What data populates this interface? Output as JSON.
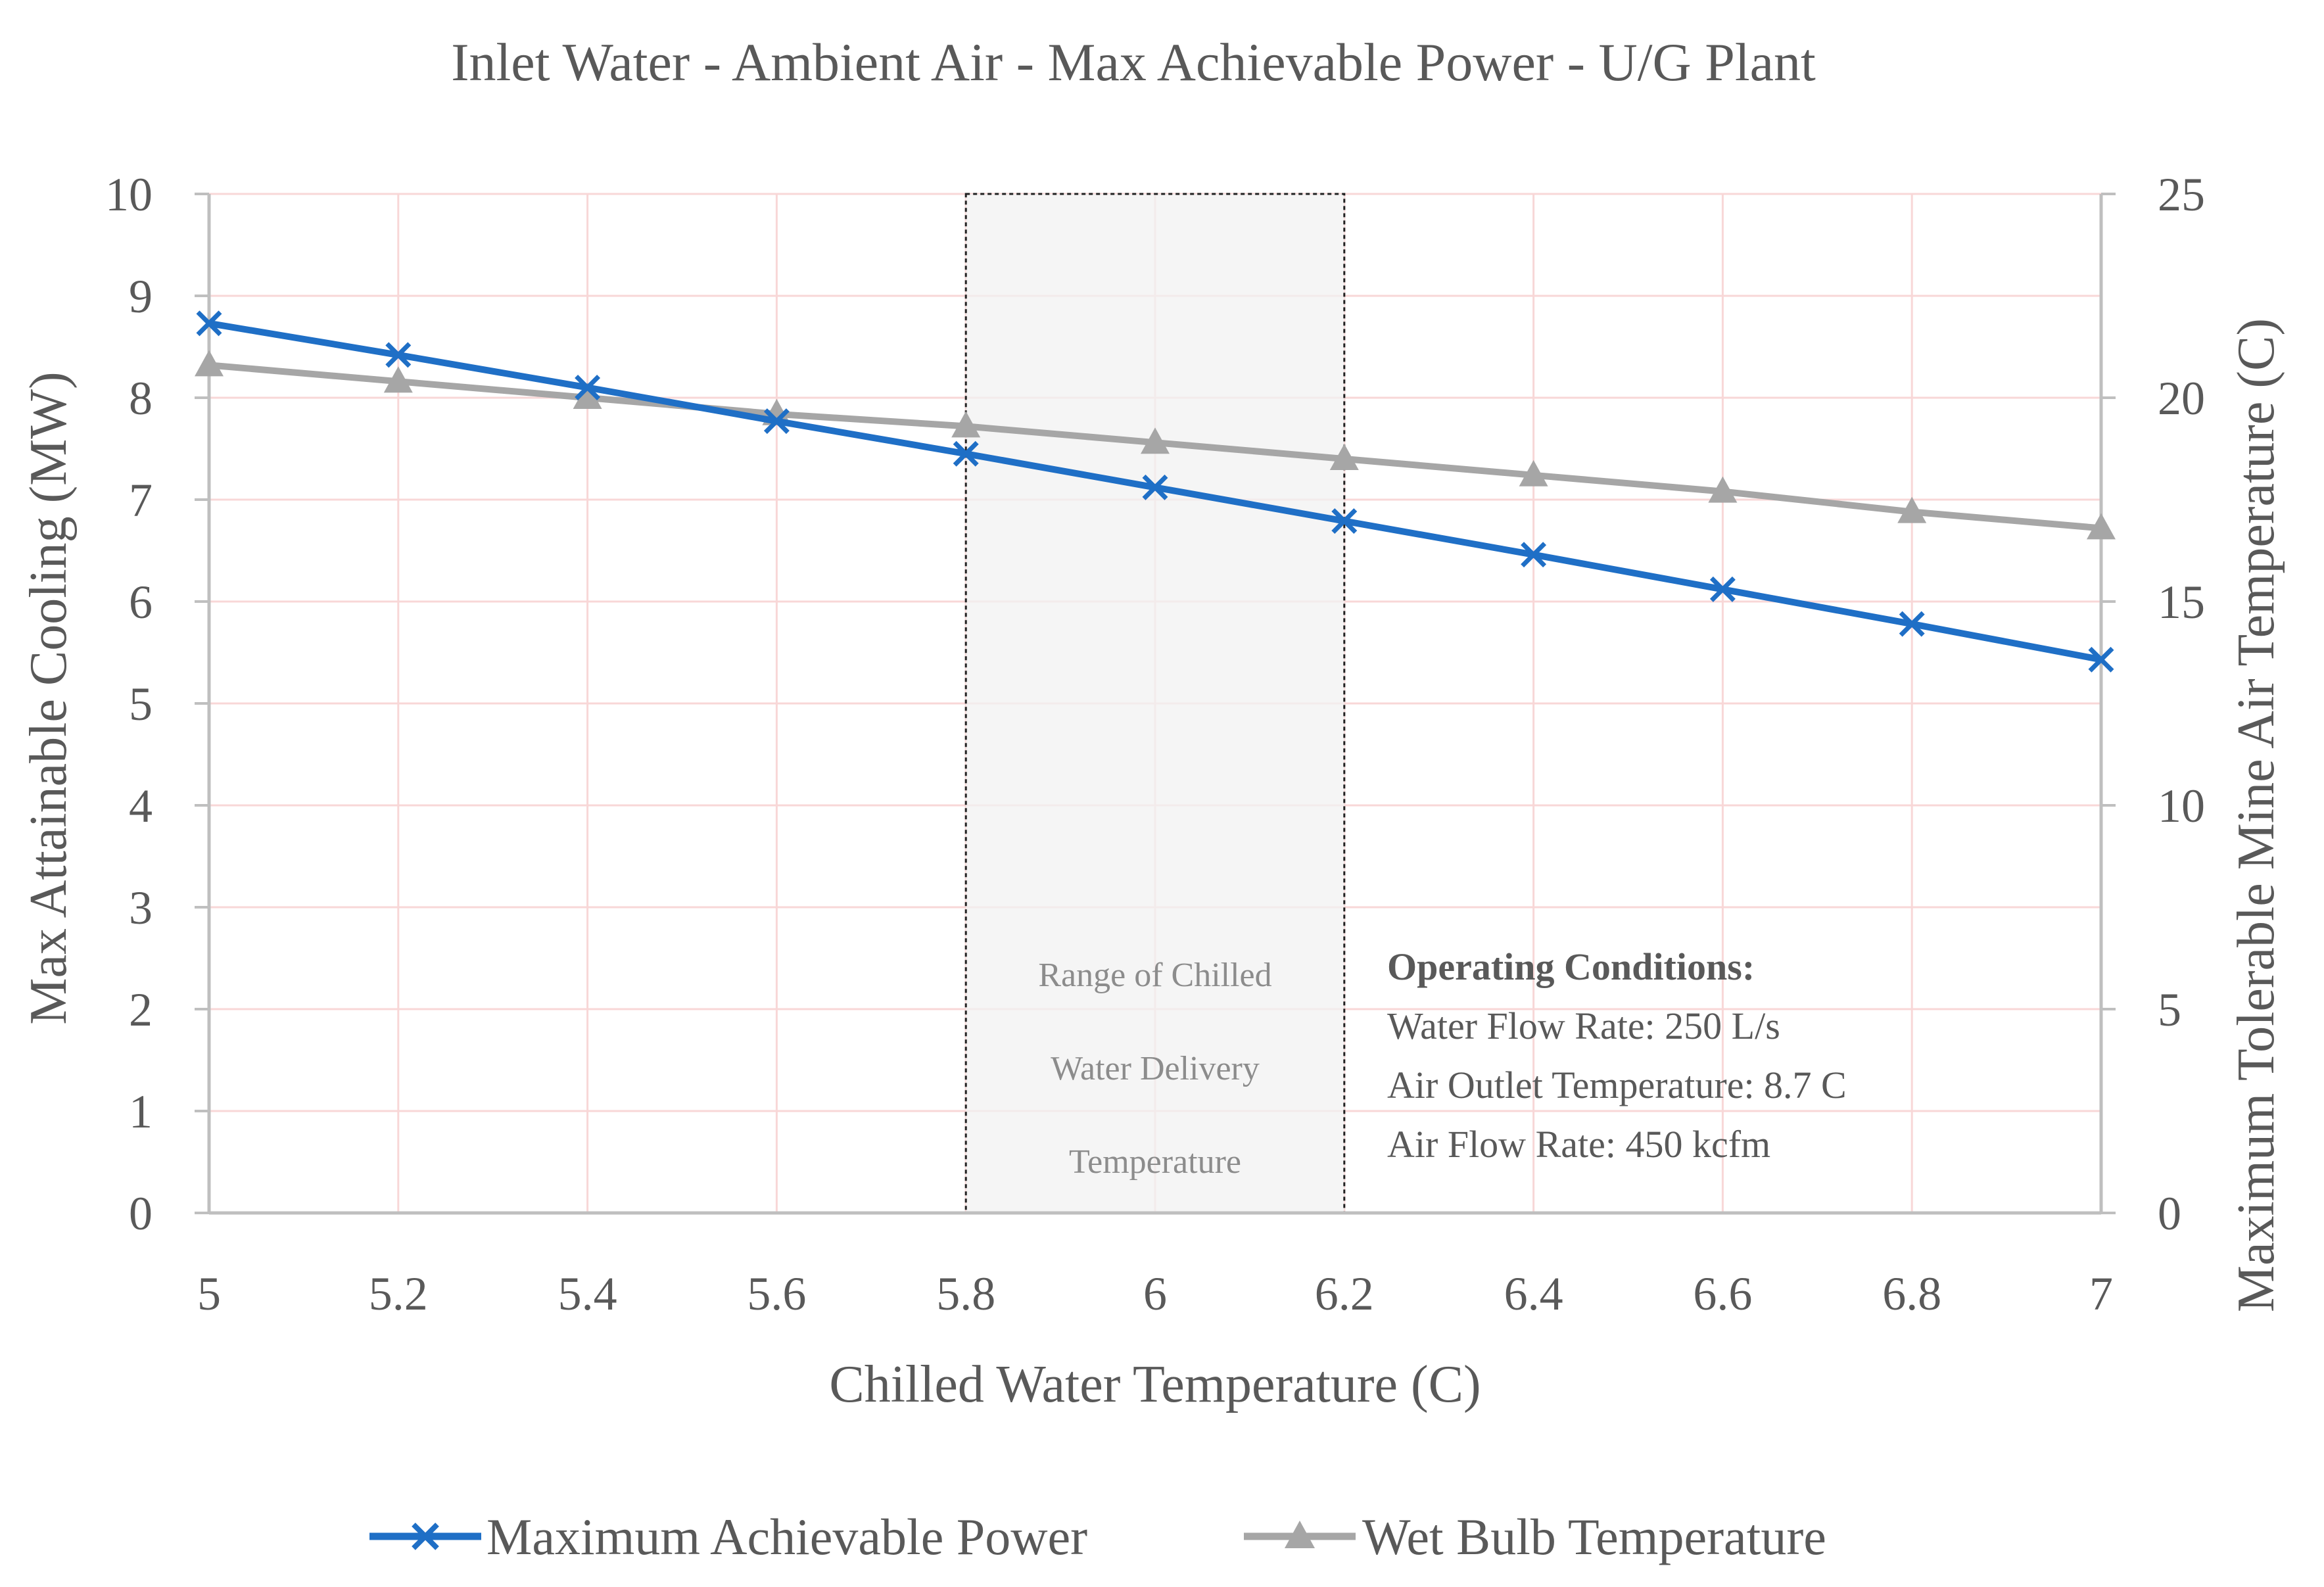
{
  "chart_data": {
    "type": "line",
    "title": "Inlet Water - Ambient Air - Max Achievable Power - U/G Plant",
    "xlabel": "Chilled Water Temperature (C)",
    "ylabel": "Max Attainable Cooling (MW)",
    "y2label": "Maximum Tolerable Mine Air Temperature (C)",
    "x": [
      5,
      5.2,
      5.4,
      5.6,
      5.8,
      6,
      6.2,
      6.4,
      6.6,
      6.8,
      7
    ],
    "x_tick_labels": [
      "5",
      "5.2",
      "5.4",
      "5.6",
      "5.8",
      "6",
      "6.2",
      "6.4",
      "6.6",
      "6.8",
      "7"
    ],
    "xlim": [
      5,
      7
    ],
    "ylim": [
      0,
      10
    ],
    "y_tick_labels": [
      "0",
      "1",
      "2",
      "3",
      "4",
      "5",
      "6",
      "7",
      "8",
      "9",
      "10"
    ],
    "y2lim": [
      0,
      25
    ],
    "y2_tick_labels": [
      "0",
      "5",
      "10",
      "15",
      "20",
      "25"
    ],
    "grid": true,
    "legend_position": "bottom",
    "series": [
      {
        "name": "Maximum Achievable Power",
        "axis": "left",
        "marker": "x",
        "color": "#1f6fc6",
        "values": [
          8.73,
          8.42,
          8.1,
          7.77,
          7.45,
          7.12,
          6.79,
          6.46,
          6.12,
          5.78,
          5.43
        ]
      },
      {
        "name": "Wet Bulb Temperature",
        "axis": "right",
        "marker": "triangle",
        "color": "#a6a6a6",
        "values": [
          20.8,
          20.4,
          20.0,
          19.6,
          19.3,
          18.9,
          18.5,
          18.1,
          17.7,
          17.2,
          16.8
        ]
      }
    ],
    "annotations": {
      "range_box": {
        "x_start": 5.8,
        "x_end": 6.2,
        "lines": [
          "Range of Chilled",
          "Water Delivery",
          "Temperature"
        ]
      },
      "operating_conditions": {
        "heading": "Operating Conditions:",
        "lines": [
          "Water Flow Rate: 250 L/s",
          "Air Outlet Temperature: 8.7 C",
          "Air Flow Rate: 450 kcfm"
        ]
      }
    }
  }
}
